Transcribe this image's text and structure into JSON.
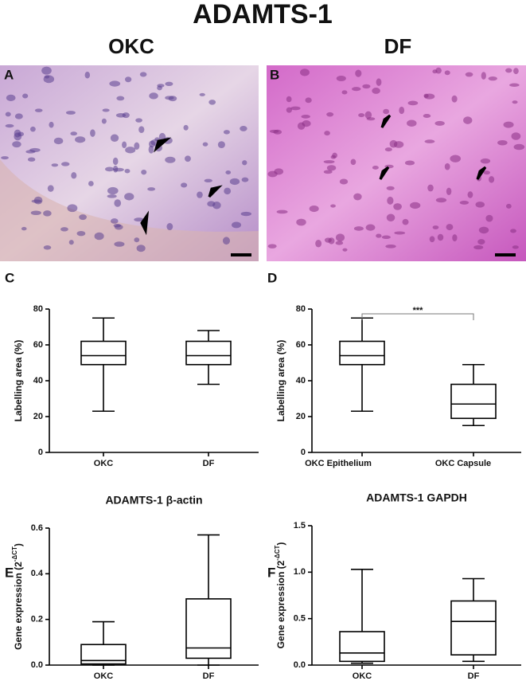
{
  "title": "ADAMTS-1",
  "panels": [
    {
      "letter": "A",
      "label": "OKC"
    },
    {
      "letter": "B",
      "label": "DF"
    }
  ],
  "chart_data": [
    {
      "type": "box",
      "panel_label": "C",
      "y_label": "Labelling area (%)",
      "categories": [
        "OKC",
        "DF"
      ],
      "boxes": [
        {
          "min": 23,
          "q1": 49,
          "median": 54,
          "q3": 62,
          "max": 75
        },
        {
          "min": 38,
          "q1": 49,
          "median": 54,
          "q3": 62,
          "max": 68
        }
      ],
      "ylim": [
        0,
        80
      ],
      "yticks": [
        0,
        20,
        40,
        60,
        80
      ]
    },
    {
      "type": "box",
      "panel_label": "D",
      "y_label": "Labelling area (%)",
      "categories": [
        "OKC Epithelium",
        "OKC Capsule"
      ],
      "boxes": [
        {
          "min": 23,
          "q1": 49,
          "median": 54,
          "q3": 62,
          "max": 75
        },
        {
          "min": 15,
          "q1": 19,
          "median": 27,
          "q3": 38,
          "max": 49
        }
      ],
      "annotation": "***",
      "ylim": [
        0,
        80
      ],
      "yticks": [
        0,
        20,
        40,
        60,
        80
      ]
    },
    {
      "type": "box",
      "panel_label": "E",
      "title": "ADAMTS-1 β-actin",
      "y_label": "Gene expression (2",
      "y_label_sup": "-ΔCT",
      "y_label_end": ")",
      "categories": [
        "OKC",
        "DF"
      ],
      "boxes": [
        {
          "min": 0,
          "q1": 0.005,
          "median": 0.02,
          "q3": 0.09,
          "max": 0.19
        },
        {
          "min": 0,
          "q1": 0.03,
          "median": 0.075,
          "q3": 0.29,
          "max": 0.57
        }
      ],
      "ylim": [
        0,
        0.6
      ],
      "yticks": [
        {
          "value": 0,
          "label": "0.0"
        },
        0.2,
        0.4,
        0.6
      ]
    },
    {
      "type": "box",
      "panel_label": "F",
      "title": "ADAMTS-1 GAPDH",
      "y_label": "Gene expression (2",
      "y_label_sup": "-ΔCT",
      "y_label_end": ")",
      "categories": [
        "OKC",
        "DF"
      ],
      "boxes": [
        {
          "min": 0.02,
          "q1": 0.04,
          "median": 0.13,
          "q3": 0.36,
          "max": 1.03
        },
        {
          "min": 0.04,
          "q1": 0.11,
          "median": 0.47,
          "q3": 0.69,
          "max": 0.93
        }
      ],
      "ylim": [
        0,
        1.5
      ],
      "yticks": [
        {
          "value": 0,
          "label": "0.0"
        },
        0.5,
        {
          "value": 1,
          "label": "1.0"
        },
        {
          "value": 1.5,
          "label": "1.5"
        }
      ]
    }
  ]
}
